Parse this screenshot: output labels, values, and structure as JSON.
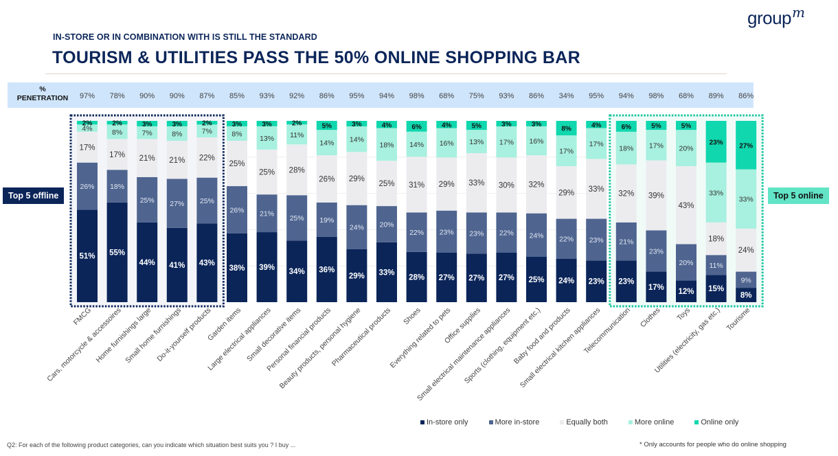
{
  "header": {
    "subtitle": "IN-STORE OR IN COMBINATION WITH IS STILL THE STANDARD",
    "title": "TOURISM & UTILITIES PASS THE 50% ONLINE SHOPPING BAR",
    "logo_text": "group",
    "logo_suffix": "m"
  },
  "penetration": {
    "label_line1": "%",
    "label_line2": "PENETRATION",
    "values": [
      "97%",
      "78%",
      "90%",
      "90%",
      "87%",
      "85%",
      "93%",
      "92%",
      "86%",
      "95%",
      "94%",
      "98%",
      "68%",
      "75%",
      "93%",
      "86%",
      "34%",
      "95%",
      "94%",
      "98%",
      "68%",
      "89%",
      "86%"
    ]
  },
  "badges": {
    "offline": "Top 5 offline",
    "online": "Top 5 online"
  },
  "colors": {
    "in_store_only": "#0b2559",
    "more_in_store": "#4f6590",
    "equally_both": "#ececef",
    "more_online": "#a8f0df",
    "online_only": "#10d7ae",
    "offline_box": "#0b2559",
    "online_box": "#18c59c"
  },
  "chart_data": {
    "type": "bar",
    "stacked": true,
    "percent_stacked": true,
    "title": "TOURISM & UTILITIES PASS THE 50% ONLINE SHOPPING BAR",
    "xlabel": "",
    "ylabel": "",
    "ylim": [
      0,
      100
    ],
    "grid": true,
    "legend_position": "bottom-right",
    "categories": [
      "FMCG",
      "Cars, motorcycle & accessoires",
      "Home furnishings large",
      "Small home furnishings",
      "Do-it-yourself products",
      "Garden items",
      "Large electrical appliances",
      "Small decorative items",
      "Personal financial products",
      "Beauty products, personal hygiene",
      "Pharmaceutical products",
      "Shoes",
      "Everything related to pets",
      "Office supplies",
      "Small electrical maintenance appliances",
      "Sports (clothing, equipment etc.)",
      "Baby food and products",
      "Small electrical kitchen appliances",
      "Telecommunication",
      "Clothes",
      "Toys",
      "Utilities (electricity, gas etc.)",
      "Tourisme"
    ],
    "series": [
      {
        "name": "In-store only",
        "values": [
          51,
          55,
          44,
          41,
          43,
          38,
          39,
          34,
          36,
          29,
          33,
          28,
          27,
          27,
          27,
          25,
          24,
          23,
          23,
          17,
          12,
          15,
          8
        ]
      },
      {
        "name": "More in-store",
        "values": [
          26,
          18,
          25,
          27,
          25,
          26,
          21,
          25,
          19,
          24,
          20,
          22,
          23,
          23,
          22,
          24,
          22,
          23,
          21,
          23,
          20,
          11,
          9
        ]
      },
      {
        "name": "Equally both",
        "values": [
          17,
          17,
          21,
          21,
          22,
          25,
          25,
          28,
          26,
          29,
          25,
          31,
          29,
          33,
          30,
          32,
          29,
          33,
          32,
          39,
          43,
          18,
          24
        ]
      },
      {
        "name": "More online",
        "values": [
          4,
          8,
          7,
          8,
          7,
          8,
          13,
          11,
          14,
          14,
          18,
          14,
          16,
          13,
          17,
          16,
          17,
          17,
          18,
          17,
          20,
          33,
          33
        ]
      },
      {
        "name": "Online only",
        "values": [
          2,
          2,
          3,
          3,
          2,
          3,
          3,
          2,
          5,
          3,
          4,
          6,
          4,
          5,
          3,
          3,
          8,
          4,
          6,
          5,
          5,
          23,
          27
        ]
      }
    ],
    "highlight_groups": [
      {
        "name": "Top 5 offline",
        "from": 0,
        "to": 4
      },
      {
        "name": "Top 5 online",
        "from": 18,
        "to": 22
      }
    ]
  },
  "legend": [
    {
      "label": "In-store only",
      "color": "#0b2559"
    },
    {
      "label": "More in-store",
      "color": "#4f6590"
    },
    {
      "label": "Equally both",
      "color": "#ececef"
    },
    {
      "label": "More online",
      "color": "#a8f0df"
    },
    {
      "label": "Online only",
      "color": "#10d7ae"
    }
  ],
  "footnotes": {
    "question": "Q2: For each of the following product categories, can you indicate which situation best suits you ? I buy ...",
    "note": "* Only accounts for people who do online shopping"
  }
}
